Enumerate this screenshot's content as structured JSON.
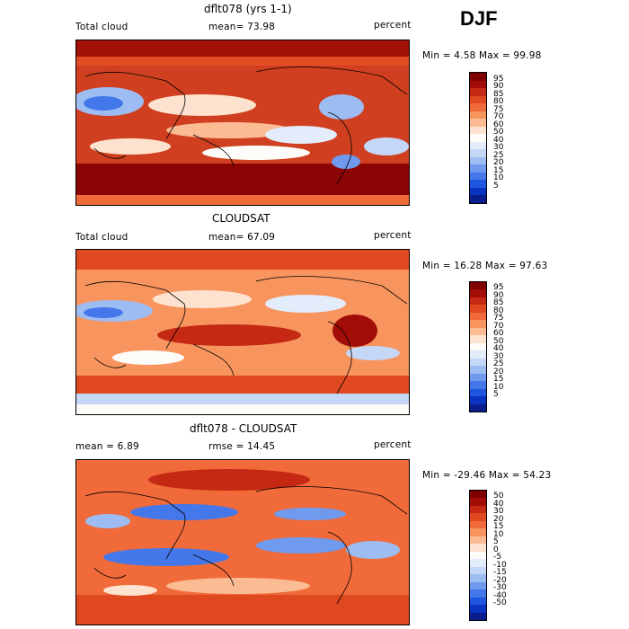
{
  "season": "DJF",
  "colors": {
    "abs_scale": [
      "#800000",
      "#a20d07",
      "#c52813",
      "#e0481f",
      "#f06a3a",
      "#f8955f",
      "#fbbb93",
      "#fde3cf",
      "#fdfcf8",
      "#e3ecfb",
      "#c5d7f7",
      "#9dbcf2",
      "#6f9aee",
      "#4478ea",
      "#1f56e0",
      "#0b33c2",
      "#0a1d8c"
    ],
    "diff_scale": [
      "#800000",
      "#a20d07",
      "#c52813",
      "#e0481f",
      "#f06a3a",
      "#f8955f",
      "#fbbb93",
      "#fde3cf",
      "#fdfcf8",
      "#e3ecfb",
      "#c5d7f7",
      "#9dbcf2",
      "#6f9aee",
      "#4478ea",
      "#1f56e0",
      "#0b33c2",
      "#0a1d8c"
    ]
  },
  "panels": [
    {
      "id": "model",
      "title": "dflt078 (yrs 1-1)",
      "variable": "Total cloud",
      "stat1": "mean=  73.98",
      "stat2": "",
      "units": "percent",
      "minmax": "Min =    4.58 Max =  99.98",
      "levels": [
        "95",
        "90",
        "85",
        "80",
        "75",
        "70",
        "60",
        "50",
        "40",
        "30",
        "25",
        "20",
        "15",
        "10",
        "5"
      ]
    },
    {
      "id": "obs",
      "title": "CLOUDSAT",
      "variable": "Total cloud",
      "stat1": "mean=  67.09",
      "stat2": "",
      "units": "percent",
      "minmax": "Min =  16.28 Max =  97.63",
      "levels": [
        "95",
        "90",
        "85",
        "80",
        "75",
        "70",
        "60",
        "50",
        "40",
        "30",
        "25",
        "20",
        "15",
        "10",
        "5"
      ]
    },
    {
      "id": "diff",
      "title": "dflt078 - CLOUDSAT",
      "variable": "",
      "stat1": "mean =    6.89",
      "stat2": "rmse =  14.45",
      "units": "percent",
      "minmax": "Min = -29.46 Max =  54.23",
      "levels": [
        "50",
        "40",
        "30",
        "20",
        "15",
        "10",
        "5",
        "0",
        "-5",
        "-10",
        "-15",
        "-20",
        "-30",
        "-40",
        "-50"
      ]
    }
  ]
}
